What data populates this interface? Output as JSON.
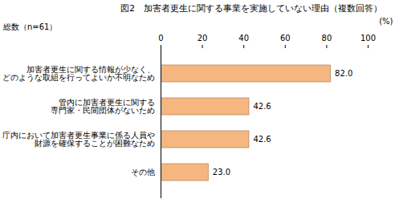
{
  "chart_data": {
    "type": "bar",
    "orientation": "horizontal",
    "title": "図2　加害者更生に関する事業を実施していない理由（複数回答）",
    "subtitle": "総数（n=61）",
    "xlabel": "(%)",
    "categories": [
      "加害者更生に関する情報が少なく、\nどのような取組を行ってよいか不明なため",
      "管内に加害者更生に関する\n専門家・民間団体がないため",
      "庁内において加害者更生事業に係る人員や\n財源を確保することが困難なため",
      "その他"
    ],
    "values": [
      82.0,
      42.6,
      42.6,
      23.0
    ],
    "value_labels": [
      "82.0",
      "42.6",
      "42.6",
      "23.0"
    ],
    "data_labels": true,
    "color": "#f5b77f",
    "xlim": [
      0,
      100
    ],
    "xticks": [
      0,
      20,
      40,
      60,
      80,
      100
    ],
    "grid": false
  }
}
